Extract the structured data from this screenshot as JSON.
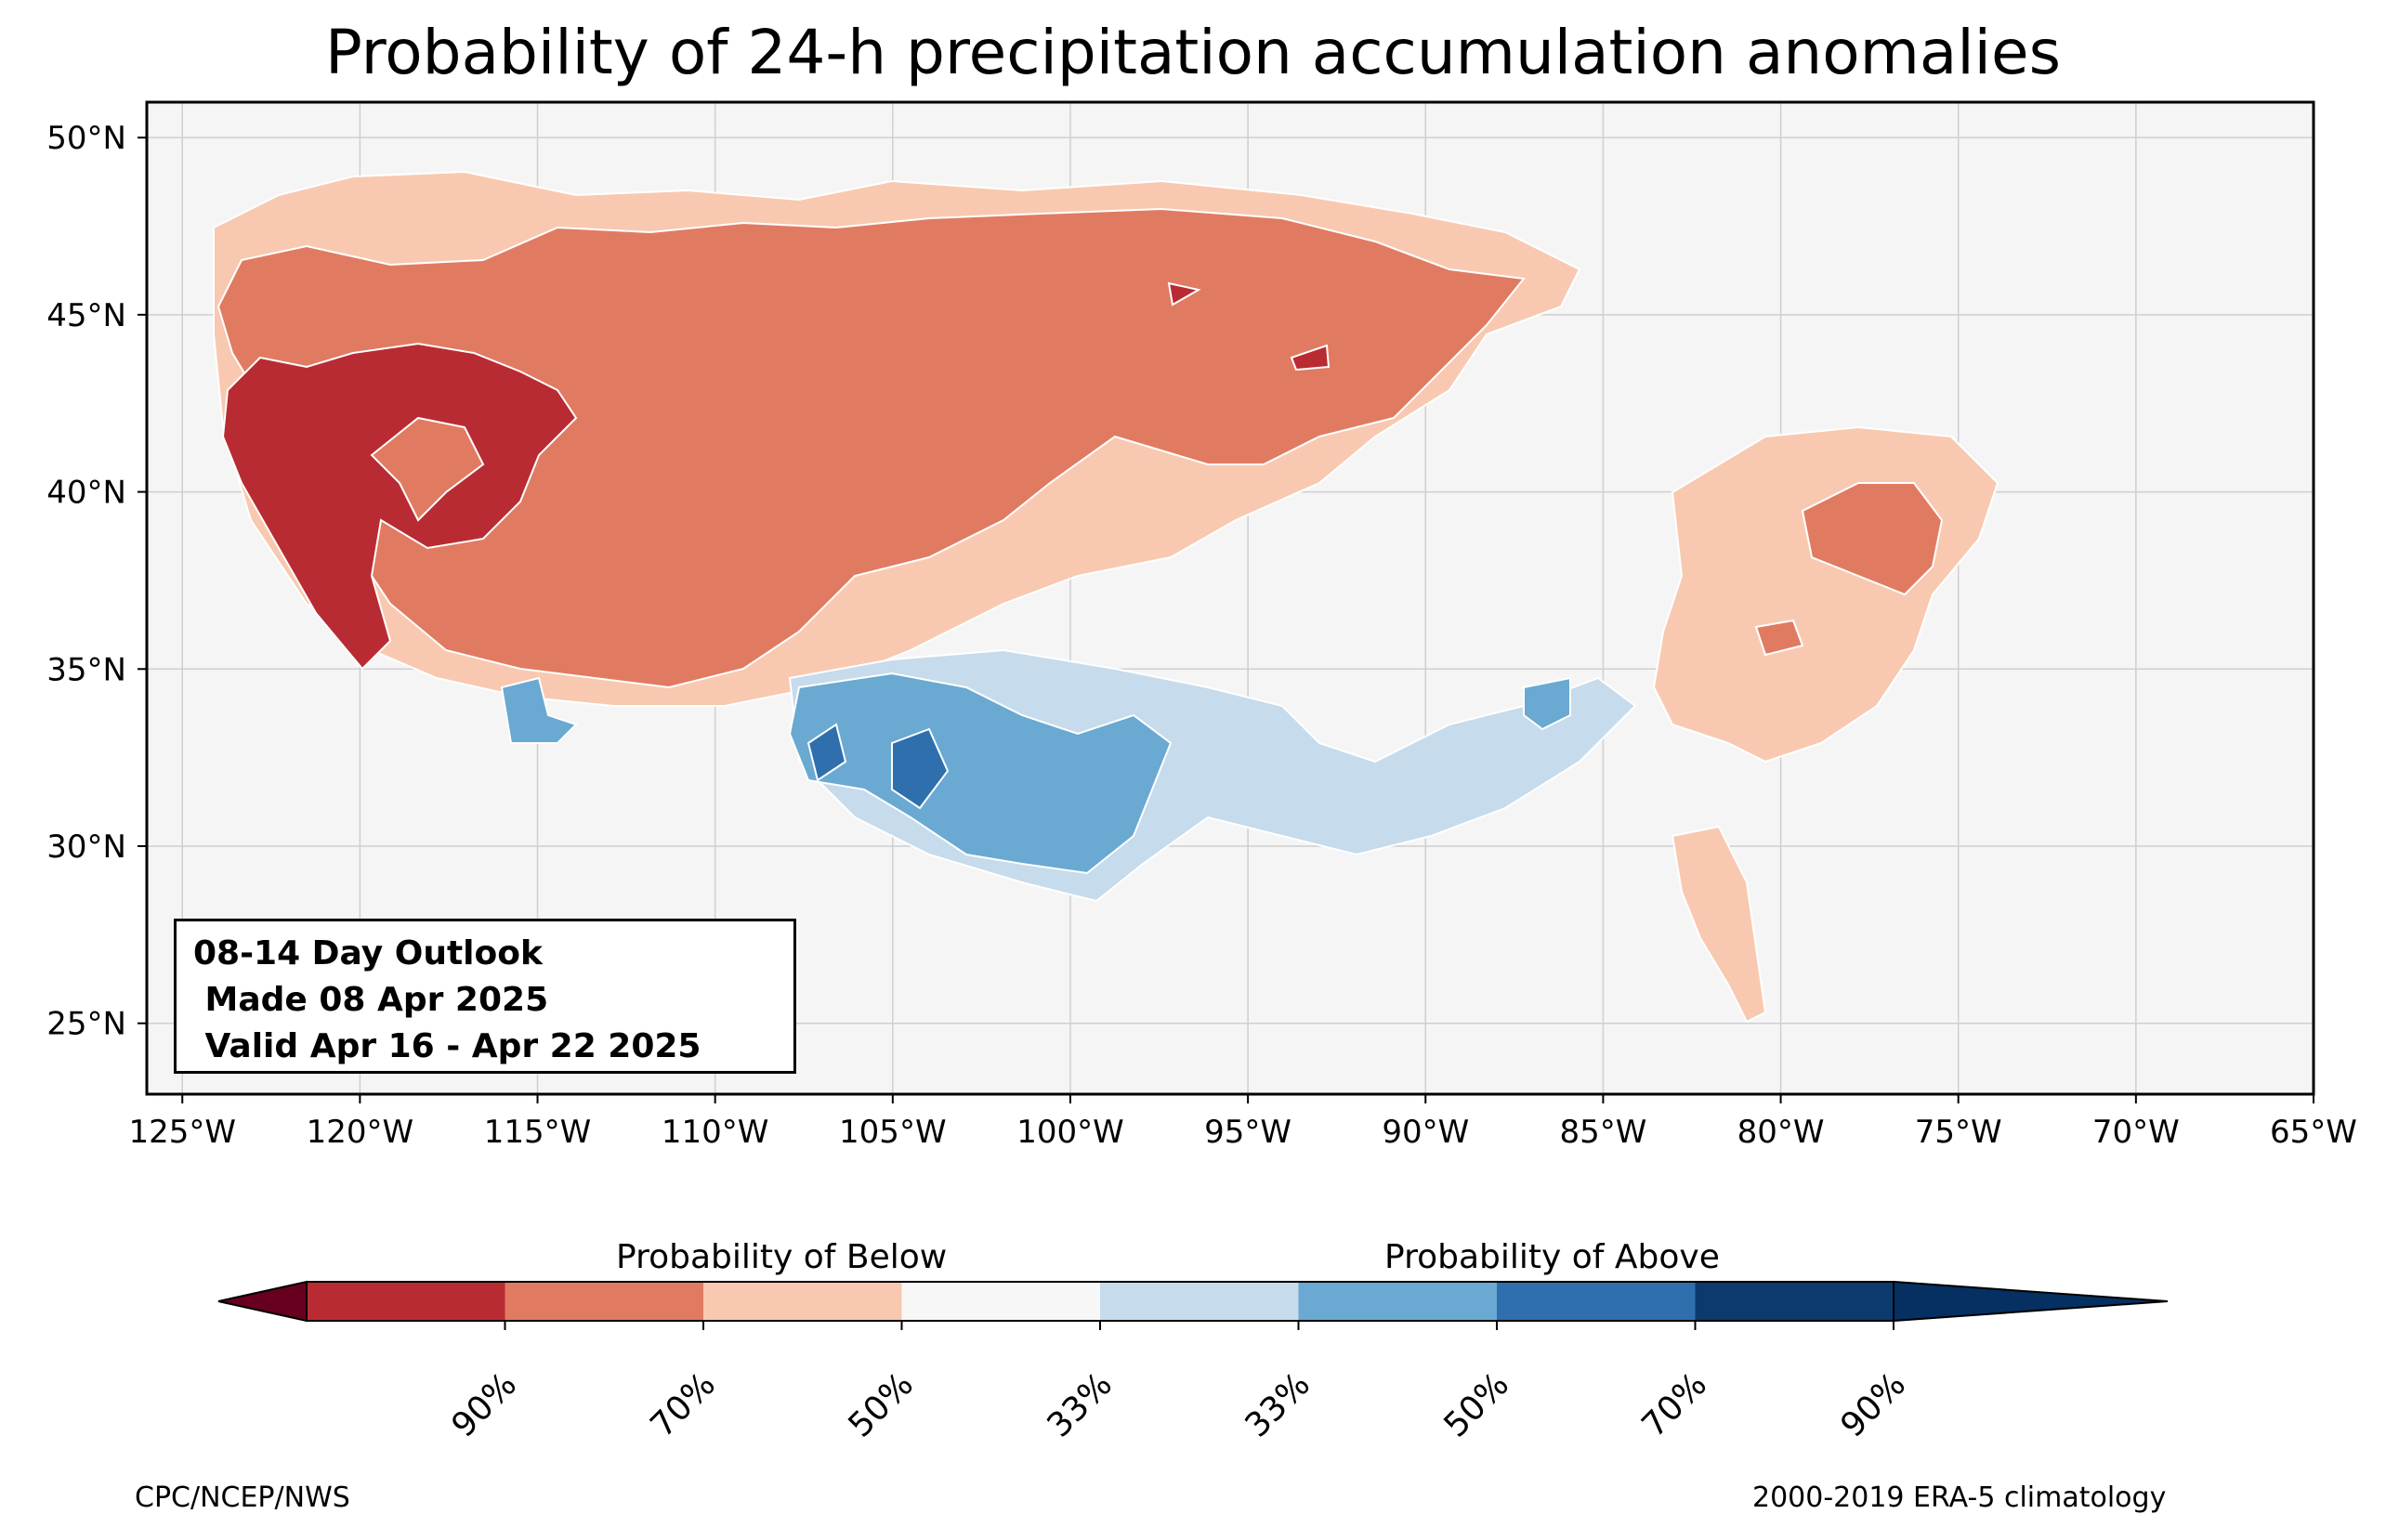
{
  "title": "Probability of 24-h precipitation accumulation anomalies",
  "outlook": {
    "line1": "08-14 Day Outlook",
    "line2": " Made 08 Apr 2025",
    "line3": " Valid Apr 16 - Apr 22 2025"
  },
  "map": {
    "lon_range": [
      -126,
      -65
    ],
    "lat_range": [
      23,
      51
    ],
    "lon_ticks": [
      "125°W",
      "120°W",
      "115°W",
      "110°W",
      "105°W",
      "100°W",
      "95°W",
      "90°W",
      "85°W",
      "80°W",
      "75°W",
      "70°W",
      "65°W"
    ],
    "lat_ticks": [
      "50°N",
      "45°N",
      "40°N",
      "35°N",
      "30°N",
      "25°N"
    ],
    "background": "#f5f5f5"
  },
  "colorbar": {
    "below_label": "Probability of Below",
    "above_label": "Probability of Above",
    "colors": [
      "#67001f",
      "#b2182b",
      "#d6604d",
      "#f4a582",
      "#f7f7f7",
      "#bdd7e7",
      "#6baed6",
      "#2166ac",
      "#053061"
    ],
    "bins": [
      "#b2182b",
      "#d6604d",
      "#f4a582",
      "#fddbc7",
      "#f7f7f7",
      "#d1e5f0",
      "#92c5de",
      "#4393c3",
      "#2166ac"
    ],
    "tick_labels": [
      "90%",
      "70%",
      "50%",
      "33%",
      "33%",
      "50%",
      "70%",
      "90%"
    ]
  },
  "credits": {
    "left": "CPC/NCEP/NWS",
    "right": "2000-2019 ERA-5 climatology"
  }
}
